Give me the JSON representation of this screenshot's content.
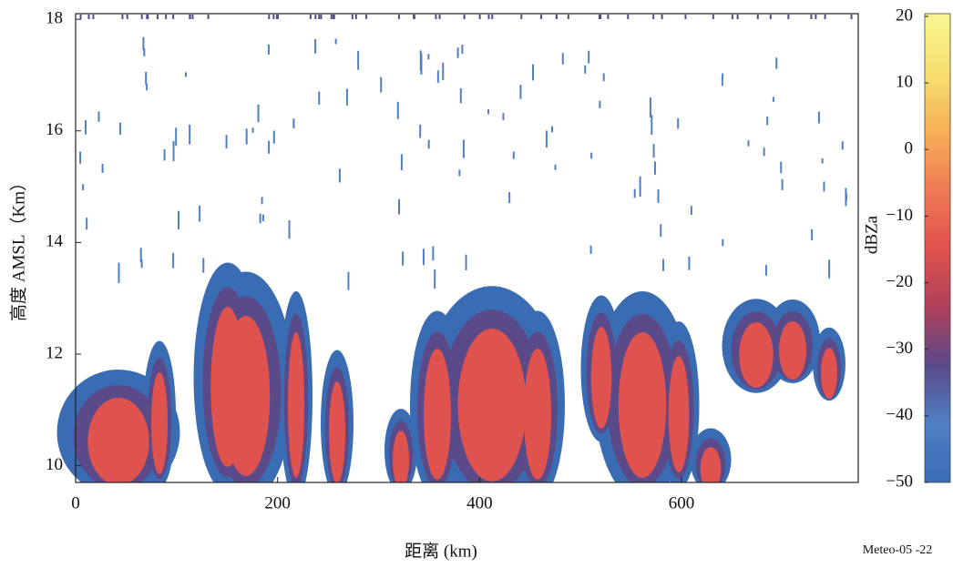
{
  "chart_data": {
    "type": "heatmap",
    "xlabel": "距离 (km)",
    "ylabel": "高度 AMSL（Km）",
    "xlim": [
      0,
      775
    ],
    "xticks": [
      0,
      200,
      400,
      600
    ],
    "ylim": [
      9.7,
      18.1
    ],
    "yticks": [
      10,
      12,
      14,
      16,
      18
    ],
    "colorbar": {
      "label": "dBZa",
      "lim": [
        -50,
        20
      ],
      "ticks": [
        {
          "value": -50,
          "label": "−50"
        },
        {
          "value": -40,
          "label": "−40"
        },
        {
          "value": -30,
          "label": "−30"
        },
        {
          "value": -20,
          "label": "−20"
        },
        {
          "value": -10,
          "label": "−10"
        },
        0,
        10,
        20
      ],
      "colors": [
        "#3a6cb4",
        "#4f7fc4",
        "#5a4a8a",
        "#b0405a",
        "#e0524e",
        "#f07a55",
        "#f5b055",
        "#f8e070",
        "#f8f590"
      ]
    },
    "annotation": "Meteo-05 -22"
  }
}
